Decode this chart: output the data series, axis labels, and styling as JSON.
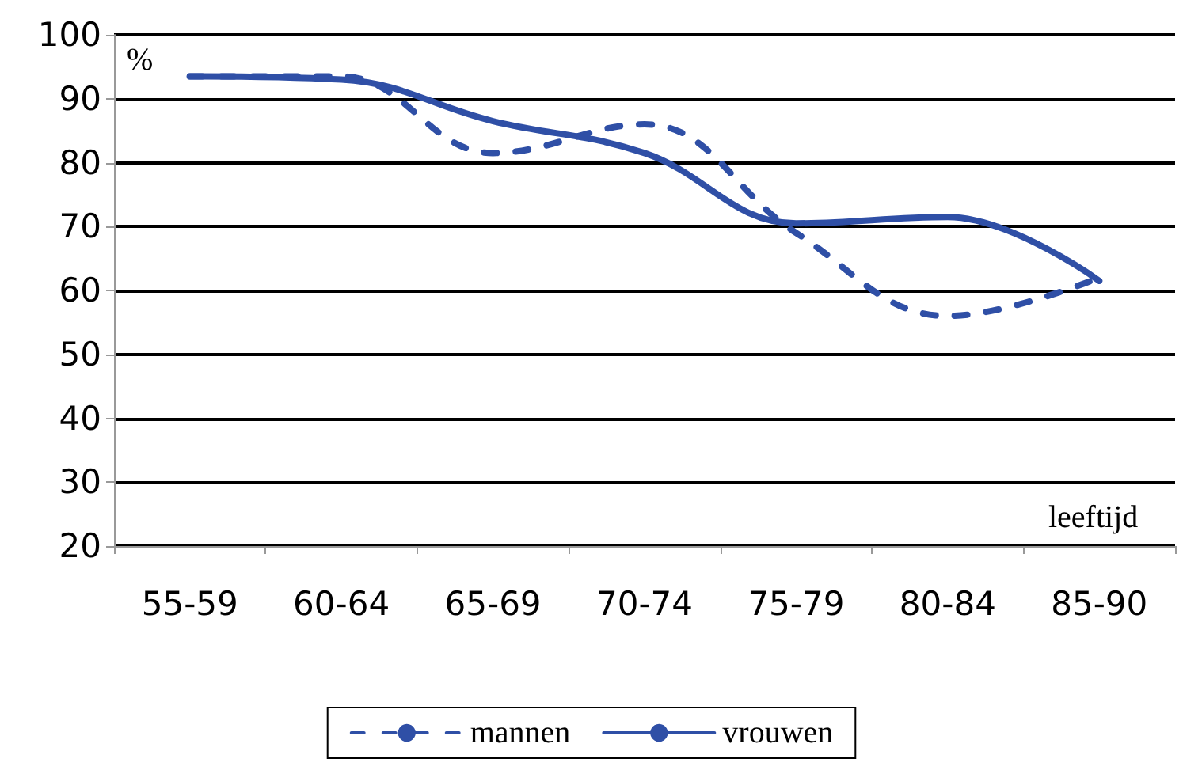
{
  "chart_data": {
    "type": "line",
    "xlabel": "leeftijd",
    "ylabel": "%",
    "categories": [
      "55-59",
      "60-64",
      "65-69",
      "70-74",
      "75-79",
      "80-84",
      "85-90"
    ],
    "series": [
      {
        "name": "mannen",
        "color": "#2f4fa6",
        "line_style": "dashed",
        "values": [
          93.5,
          93.5,
          81.5,
          86,
          69,
          56,
          62
        ]
      },
      {
        "name": "vrouwen",
        "color": "#2f4fa6",
        "line_style": "solid",
        "values": [
          93.5,
          93,
          86.5,
          81.5,
          70.5,
          71.5,
          61.5
        ]
      }
    ],
    "ylim": [
      20,
      100
    ],
    "yticks": [
      20,
      30,
      40,
      50,
      60,
      70,
      80,
      90,
      100
    ],
    "grid": "y",
    "legend": "bottom",
    "marker": "none"
  }
}
